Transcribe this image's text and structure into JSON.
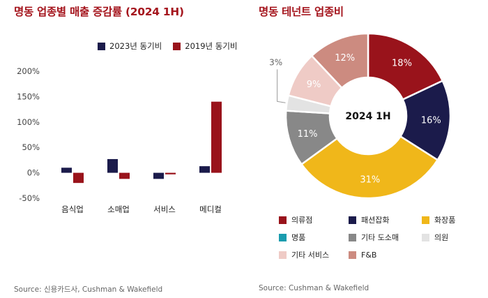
{
  "left": {
    "title": "명동 업종별 매출 증감률 (2024 1H)",
    "source": "Source: 신용카드사, Cushman & Wakefield"
  },
  "right": {
    "title": "명동 테넌트 업종비",
    "source": "Source: Cushman & Wakefield",
    "center_label": "2024 1H"
  },
  "chart_data": [
    {
      "type": "bar",
      "title": "명동 업종별 매출 증감률 (2024 1H)",
      "categories": [
        "음식업",
        "소매업",
        "서비스",
        "메디컬"
      ],
      "series": [
        {
          "name": "2023년 동기비",
          "color": "#1b1b4b",
          "values": [
            10,
            27,
            -12,
            13
          ]
        },
        {
          "name": "2019년 동기비",
          "color": "#99131b",
          "values": [
            -20,
            -12,
            -3,
            140
          ]
        }
      ],
      "ylim": [
        -50,
        200
      ],
      "yticks": [
        -50,
        0,
        50,
        100,
        150,
        200
      ],
      "ytick_labels": [
        "-50%",
        "0%",
        "50%",
        "100%",
        "150%",
        "200%"
      ],
      "legend_position": "top-center",
      "grid": false
    },
    {
      "type": "pie",
      "title": "명동 테넌트 업종비",
      "center_label": "2024 1H",
      "slices": [
        {
          "label": "의류점",
          "value": 18,
          "display": "18%",
          "color": "#99131b"
        },
        {
          "label": "패션잡화",
          "value": 16,
          "display": "16%",
          "color": "#1b1b4b"
        },
        {
          "label": "화장품",
          "value": 31,
          "display": "31%",
          "color": "#f0b71a"
        },
        {
          "label": "명품",
          "value": 0,
          "display": "",
          "color": "#1a9cae"
        },
        {
          "label": "기타 도소매",
          "value": 11,
          "display": "11%",
          "color": "#888888"
        },
        {
          "label": "의원",
          "value": 3,
          "display": "3%",
          "color": "#e3e3e3"
        },
        {
          "label": "기타 서비스",
          "value": 9,
          "display": "9%",
          "color": "#efcbc6"
        },
        {
          "label": "F&B",
          "value": 12,
          "display": "12%",
          "color": "#cc8b80"
        }
      ],
      "legend_position": "bottom"
    }
  ]
}
